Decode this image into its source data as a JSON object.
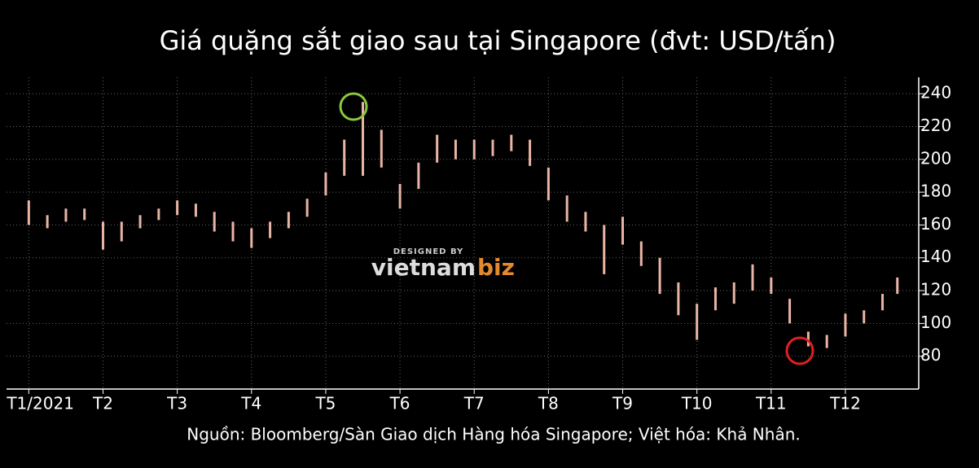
{
  "chart_data": {
    "type": "range-bar",
    "title": "Giá quặng sắt giao sau tại Singapore (đvt: USD/tấn)",
    "source": "Nguồn: Bloomberg/Sàn Giao dịch Hàng hóa Singapore; Việt hóa: Khả Nhân.",
    "watermark": {
      "top": "DESIGNED BY",
      "brand_a": "vietnam",
      "brand_b": "biz"
    },
    "x": [
      1.0,
      1.25,
      1.5,
      1.75,
      2.0,
      2.25,
      2.5,
      2.75,
      3.0,
      3.25,
      3.5,
      3.75,
      4.0,
      4.25,
      4.5,
      4.75,
      5.0,
      5.25,
      5.5,
      5.75,
      6.0,
      6.25,
      6.5,
      6.75,
      7.0,
      7.25,
      7.5,
      7.75,
      8.0,
      8.25,
      8.5,
      8.75,
      9.0,
      9.25,
      9.5,
      9.75,
      10.0,
      10.25,
      10.5,
      10.75,
      11.0,
      11.25,
      11.5,
      11.75,
      12.0,
      12.25,
      12.5,
      12.7
    ],
    "series": [
      {
        "name": "low",
        "values": [
          160,
          158,
          162,
          163,
          145,
          150,
          158,
          163,
          166,
          165,
          156,
          150,
          146,
          152,
          158,
          165,
          178,
          190,
          190,
          195,
          170,
          182,
          198,
          200,
          200,
          202,
          205,
          196,
          175,
          162,
          156,
          130,
          148,
          135,
          118,
          105,
          90,
          108,
          112,
          120,
          118,
          100,
          86,
          85,
          92,
          100,
          108,
          118
        ]
      },
      {
        "name": "high",
        "values": [
          175,
          166,
          170,
          170,
          162,
          162,
          166,
          170,
          175,
          173,
          168,
          162,
          158,
          162,
          168,
          176,
          192,
          212,
          235,
          218,
          185,
          198,
          215,
          212,
          212,
          212,
          215,
          212,
          195,
          178,
          168,
          160,
          165,
          150,
          140,
          125,
          112,
          122,
          125,
          136,
          128,
          115,
          95,
          93,
          106,
          108,
          118,
          128
        ]
      }
    ],
    "color": "#e9b5a4",
    "xlim": [
      0.7,
      12.9
    ],
    "xticks": [
      {
        "value": 1,
        "label": "T1/2021"
      },
      {
        "value": 2,
        "label": "T2"
      },
      {
        "value": 3,
        "label": "T3"
      },
      {
        "value": 4,
        "label": "T4"
      },
      {
        "value": 5,
        "label": "T5"
      },
      {
        "value": 6,
        "label": "T6"
      },
      {
        "value": 7,
        "label": "T7"
      },
      {
        "value": 8,
        "label": "T8"
      },
      {
        "value": 9,
        "label": "T9"
      },
      {
        "value": 10,
        "label": "T10"
      },
      {
        "value": 11,
        "label": "T11"
      },
      {
        "value": 12,
        "label": "T12"
      }
    ],
    "ylim": [
      60,
      250
    ],
    "yticks": [
      80,
      100,
      120,
      140,
      160,
      180,
      200,
      220,
      240
    ],
    "grid": true
  }
}
